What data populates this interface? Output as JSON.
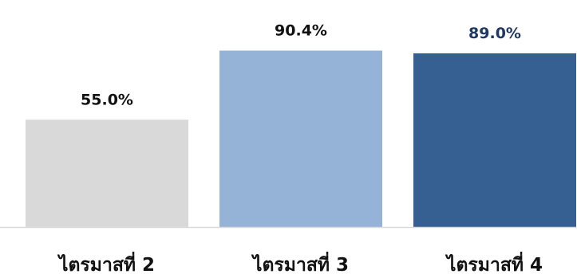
{
  "chart_data": {
    "type": "bar",
    "categories": [
      "ไตรมาสที่ 2",
      "ไตรมาสที่ 3",
      "ไตรมาสที่ 4"
    ],
    "values": [
      55.0,
      90.4,
      89.0
    ],
    "data_labels": [
      "55.0%",
      "90.4%",
      "89.0%"
    ],
    "unit": "%",
    "ylim": [
      0,
      100
    ],
    "grid": false,
    "legend": "none",
    "bar_colors": [
      "#d9d9d9",
      "#95b3d7",
      "#376092"
    ],
    "label_colors": [
      "#111111",
      "#111111",
      "#1f3864"
    ],
    "axis_color": "#d9d9d9"
  }
}
